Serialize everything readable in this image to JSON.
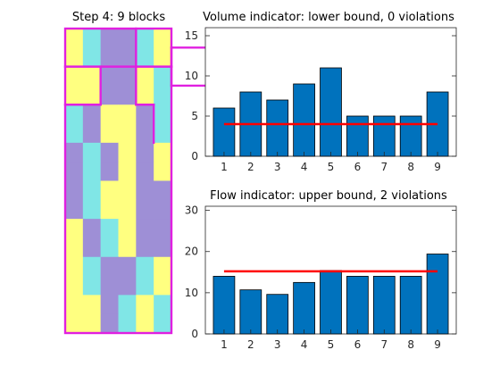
{
  "colors": {
    "yellow": "#ffff80",
    "cyan": "#80e6e6",
    "purple": "#9e8fd6",
    "block_edge": "#e020e0",
    "bar": "#0072bd",
    "bound": "#ff0000",
    "axis": "#262626"
  },
  "left_panel": {
    "title": "Step 4: 9 blocks",
    "grid_cols": 6,
    "grid_rows": 16,
    "cells": [
      "YCPPCY",
      "YCPPCY",
      "YYPPYC",
      "YYPPYC",
      "CPYYPC",
      "CPYYPC",
      "PCPYPY",
      "PCPYPY",
      "PCYYPP",
      "PCYYPP",
      "YPCYPP",
      "YPCYPP",
      "YCPPCY",
      "YCPPCY",
      "YYPCYC",
      "YYPCYC"
    ],
    "block_count": 9
  },
  "chart_data": [
    {
      "type": "bar",
      "title": "Volume indicator: lower bound, 0 violations",
      "categories": [
        "1",
        "2",
        "3",
        "4",
        "5",
        "6",
        "7",
        "8",
        "9"
      ],
      "values": [
        6,
        8,
        7,
        9,
        11,
        5,
        5,
        5,
        8
      ],
      "bound": 4,
      "ylim": [
        0,
        16
      ],
      "yticks": [
        0,
        5,
        10,
        15
      ],
      "xlabel": "",
      "ylabel": ""
    },
    {
      "type": "bar",
      "title": "Flow indicator: upper bound, 2 violations",
      "categories": [
        "1",
        "2",
        "3",
        "4",
        "5",
        "6",
        "7",
        "8",
        "9"
      ],
      "values": [
        14,
        10.7,
        9.6,
        12.5,
        15.4,
        14,
        14,
        14,
        19.4
      ],
      "bound": 15.2,
      "ylim": [
        0,
        31
      ],
      "yticks": [
        0,
        10,
        20,
        30
      ],
      "xlabel": "",
      "ylabel": ""
    }
  ]
}
